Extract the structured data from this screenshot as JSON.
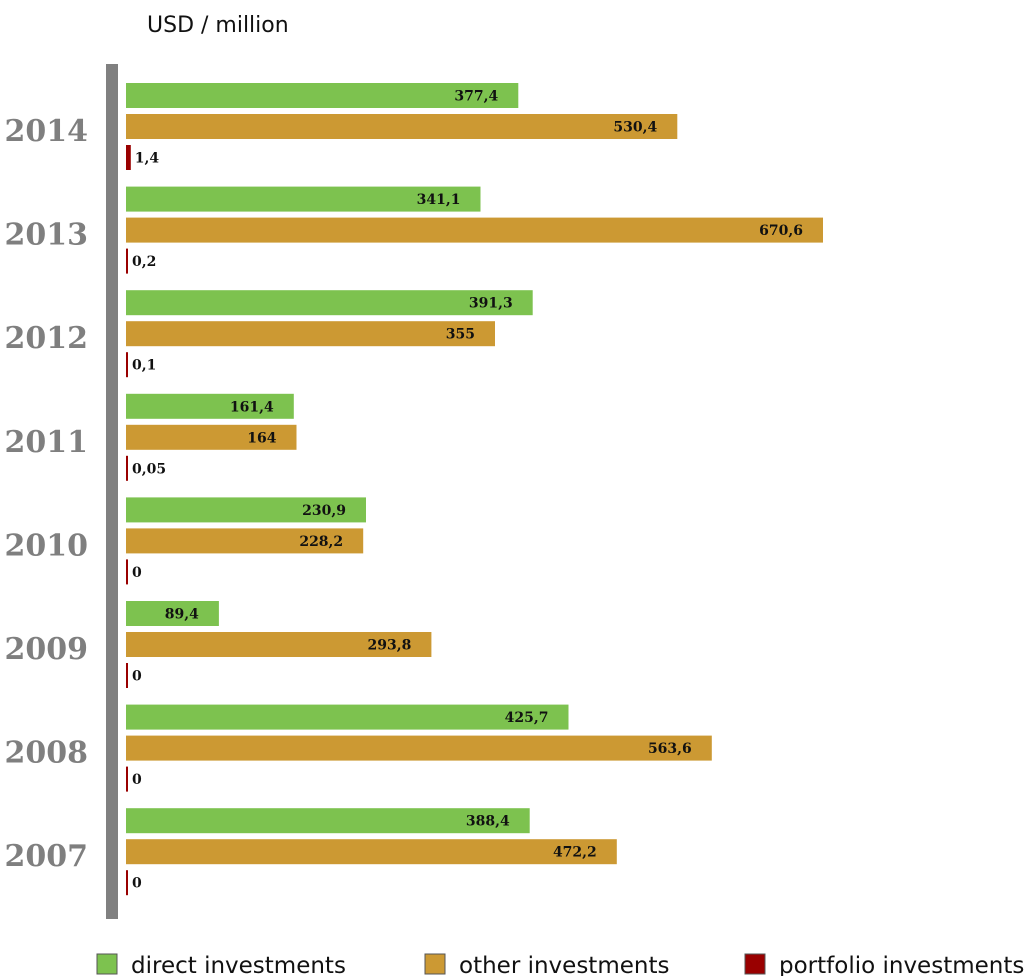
{
  "chart_data": {
    "type": "bar",
    "orientation": "horizontal",
    "unit_label": "USD / million",
    "categories": [
      "2014",
      "2013",
      "2012",
      "2011",
      "2010",
      "2009",
      "2008",
      "2007"
    ],
    "series": [
      {
        "name": "direct investments",
        "color": "#7dc24f",
        "values": [
          377.4,
          341.1,
          391.3,
          161.4,
          230.9,
          89.4,
          425.7,
          388.4
        ],
        "labels": [
          "377,4",
          "341,1",
          "391,3",
          "161,4",
          "230,9",
          "89,4",
          "425,7",
          "388,4"
        ]
      },
      {
        "name": "other investments",
        "color": "#cc9933",
        "values": [
          530.4,
          670.6,
          355,
          164,
          228.2,
          293.8,
          563.6,
          472.2
        ],
        "labels": [
          "530,4",
          "670,6",
          "355",
          "164",
          "228,2",
          "293,8",
          "563,6",
          "472,2"
        ]
      },
      {
        "name": "portfolio investments",
        "color": "#990000",
        "values": [
          1.4,
          0.2,
          0.1,
          0.05,
          0,
          0,
          0,
          0
        ],
        "labels": [
          "1,4",
          "0,2",
          "0,1",
          "0,05",
          "0",
          "0",
          "0",
          "0"
        ]
      }
    ],
    "legend_position": "bottom",
    "grid": false
  }
}
